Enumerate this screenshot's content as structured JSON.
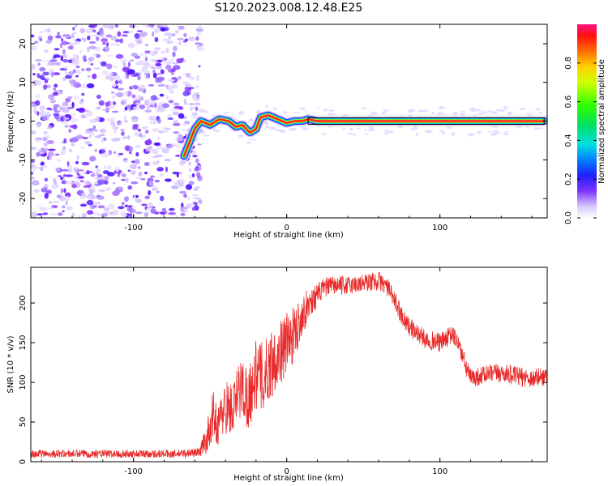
{
  "title": "S120.2023.008.12.48.E25",
  "colors": {
    "snr_line": "#e82a2a",
    "ridge": "#ff2020",
    "noise": "#8a3cff",
    "axis": "#000000"
  },
  "chart_data": [
    {
      "type": "heatmap",
      "title": "S120.2023.008.12.48.E25",
      "xlabel": "Height of straight line (km)",
      "ylabel": "Frequency (Hz)",
      "xlim": [
        -167,
        170
      ],
      "ylim": [
        -25,
        25
      ],
      "xticks": [
        -100,
        0,
        100
      ],
      "yticks": [
        -20,
        -10,
        0,
        10,
        20
      ],
      "colorbar": {
        "label": "Normalized spectral amplitude",
        "range": [
          0.0,
          1.0
        ],
        "ticks": [
          "0.0",
          "0.2",
          "0.4",
          "0.6",
          "0.8"
        ],
        "colormap": "rainbow"
      },
      "noise_region_x": [
        -167,
        -60
      ],
      "ridge": {
        "x": [
          -67,
          -64,
          -60,
          -56,
          -50,
          -44,
          -38,
          -33,
          -29,
          -24,
          -20,
          -17,
          -12,
          -6,
          0,
          5,
          10,
          14,
          20,
          40,
          60,
          80,
          100,
          120,
          140,
          160,
          168
        ],
        "freq": [
          -9,
          -6,
          -2,
          0,
          -1,
          0.5,
          0,
          -1.5,
          -1,
          -3,
          -2,
          1,
          1.5,
          0.5,
          -0.5,
          0,
          0,
          0.5,
          0,
          0,
          0,
          0,
          0,
          0,
          0,
          0,
          0
        ],
        "amplitude": [
          0.25,
          0.3,
          0.35,
          0.55,
          0.6,
          0.55,
          0.5,
          0.55,
          0.5,
          0.45,
          0.6,
          0.55,
          0.6,
          0.75,
          0.8,
          0.85,
          0.9,
          0.95,
          0.95,
          0.95,
          0.95,
          0.95,
          0.95,
          0.95,
          0.95,
          0.95,
          0.95
        ]
      }
    },
    {
      "type": "line",
      "xlabel": "Height of straight line (km)",
      "ylabel": "SNR (10 * v/v)",
      "xlim": [
        -167,
        170
      ],
      "ylim": [
        0,
        245
      ],
      "xticks": [
        -100,
        0,
        100
      ],
      "yticks": [
        0,
        50,
        100,
        150,
        200
      ],
      "envelope": {
        "x": [
          -167,
          -140,
          -100,
          -70,
          -57,
          -52,
          -48,
          -45,
          -40,
          -35,
          -30,
          -25,
          -20,
          -15,
          -10,
          -5,
          0,
          5,
          10,
          15,
          20,
          25,
          30,
          40,
          50,
          60,
          65,
          70,
          75,
          80,
          90,
          100,
          108,
          112,
          116,
          120,
          130,
          140,
          150,
          160,
          170
        ],
        "mean": [
          10,
          10,
          10,
          10,
          12,
          30,
          60,
          45,
          70,
          65,
          95,
          80,
          110,
          105,
          125,
          135,
          150,
          160,
          185,
          200,
          210,
          220,
          222,
          222,
          225,
          228,
          222,
          205,
          185,
          170,
          155,
          150,
          160,
          150,
          125,
          105,
          110,
          112,
          108,
          105,
          108
        ],
        "spread": [
          5,
          5,
          5,
          5,
          6,
          20,
          30,
          25,
          35,
          35,
          40,
          40,
          45,
          45,
          45,
          40,
          40,
          35,
          25,
          20,
          15,
          12,
          12,
          12,
          12,
          12,
          12,
          12,
          12,
          12,
          12,
          12,
          12,
          12,
          12,
          12,
          12,
          12,
          12,
          12,
          12
        ]
      }
    }
  ]
}
